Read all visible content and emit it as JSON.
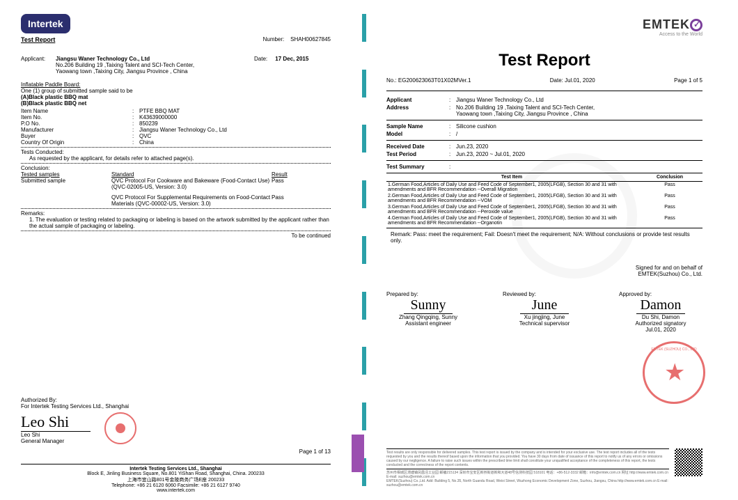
{
  "left": {
    "logo_text": "Intertek",
    "report_label": "Test Report",
    "number_label": "Number:",
    "number_value": "SHAH00627845",
    "applicant_label": "Applicant:",
    "applicant_name": "Jiangsu Waner Technology Co., Ltd",
    "applicant_addr1": "No.206 Building 19 ,Taixing Talent and SCI-Tech Center,",
    "applicant_addr2": "Yaowang town ,Taixing City, Jiangsu Province , China",
    "date_label": "Date:",
    "date_value": "17 Dec, 2015",
    "sample_header": "Inflatable Paddle Board:",
    "sample_line1": "One (1) group of submitted sample said to be",
    "sample_a": "(A)Black plastic BBQ mat",
    "sample_b": "(B)Black plastic BBQ net",
    "fields": [
      {
        "k": "Item Name",
        "v": "PTFE BBQ MAT"
      },
      {
        "k": "Item No.",
        "v": "K43639000000"
      },
      {
        "k": "P.O No.",
        "v": "850239"
      },
      {
        "k": "Manufacturer",
        "v": "Jiangsu Waner Technology Co., Ltd"
      },
      {
        "k": "Buyer",
        "v": "QVC"
      },
      {
        "k": "Country Of Origin",
        "v": "China"
      }
    ],
    "tests_conducted_label": "Tests Conducted:",
    "tests_conducted_text": "As requested by the applicant, for details refer to attached page(s).",
    "conclusion_label": "Conclusion:",
    "table_h1": "Tested samples",
    "table_h2": "Standard",
    "table_h3": "Result",
    "row1_a": "Submitted sample",
    "row1_b": "QVC Protocol For Cookware and Bakeware (Food-Contact Use) (QVC-02005-US, Version: 3.0)",
    "row1_c": "Pass",
    "row2_b": "QVC Protocol For Supplemental Requirements on Food-Contact Materials (QVC-00002-US, Version: 3.0)",
    "row2_c": "Pass",
    "remarks_label": "Remarks:",
    "remarks_text": "1.   The evaluation or testing related to packaging or labeling is based on the artwork submitted by the applicant rather than the actual sample of packaging or labeling.",
    "tbc": "To be continued",
    "auth_label": "Authorized By:",
    "auth_for": "For Intertek Testing Services Ltd., Shanghai",
    "signer_name": "Leo Shi",
    "signer_title": "General Manager",
    "page": "Page 1 of 13",
    "footer_company": "Intertek Testing Services Ltd., Shanghai",
    "footer_addr_en": "Block E, Jinling Business Square, No.801 YiShan Road, Shanghai, China. 200233",
    "footer_addr_cn": "上海市宜山路801号金陵商务广场E座 200233",
    "footer_tel": "Telephone: +86 21 6120 6060   Facsimile: +86 21 6127 9740",
    "footer_web": "www.intertek.com"
  },
  "right": {
    "logo_text": "EMTEK",
    "logo_sub": "Access to the World",
    "title": "Test Report",
    "no_label": "No.:",
    "no_value": "EG200623063T01X02MVer.1",
    "date_label": "Date:",
    "date_value": "Jul.01, 2020",
    "page": "Page 1 of 5",
    "applicant_k": "Applicant",
    "applicant_v": "Jiangsu Waner Technology Co., Ltd",
    "address_k": "Address",
    "address_v1": "No.206 Building 19 ,Taixing Talent and SCI-Tech Center,",
    "address_v2": "Yaowang town ,Taixing City, Jiangsu Province , China",
    "sample_k": "Sample Name",
    "sample_v": "Silicone cushion",
    "model_k": "Model",
    "model_v": "/",
    "recv_k": "Received Date",
    "recv_v": "Jun.23, 2020",
    "period_k": "Test Period",
    "period_v": "Jun.23, 2020 ~ Jul.01, 2020",
    "summary_k": "Test Summary",
    "th_item": "Test Item",
    "th_concl": "Conclusion",
    "items": [
      {
        "t": "1.German Food,Articles of Daily Use and Feed Code of September1, 2005(LFGB), Section 30 and 31 with amendments and BFR Recommendation --Overall Migration",
        "c": "Pass"
      },
      {
        "t": "2.German Food,Articles of Daily Use and Feed Code of September1, 2005(LFGB), Section 30 and 31 with amendments and BFR Recommendation --VOM",
        "c": "Pass"
      },
      {
        "t": "3.German Food,Articles of Daily Use and Feed Code of September1, 2005(LFGB), Section 30 and 31 with amendments and BFR Recommendation --Peroxide value",
        "c": "Pass"
      },
      {
        "t": "4.German Food,Articles of Daily Use and Feed Code of September1, 2005(LFGB), Section 30 and 31 with amendments and BFR Recommendation --Organotin",
        "c": "Pass"
      }
    ],
    "remark": "Remark: Pass: meet the requirement; Fail: Doesn't meet the requirement; N/A: Without conclusions or provide test results only.",
    "signed_for": "Signed for and on behalf of",
    "signed_co": "EMTEK(Suzhou) Co., Ltd.",
    "prepared_label": "Prepared by:",
    "reviewed_label": "Reviewed by:",
    "approved_label": "Approved by:",
    "sig1": "Sunny",
    "sig1_name": "Zhang Qingqing, Sunny",
    "sig1_title": "Assistant engineer",
    "sig2": "June",
    "sig2_name": "Xu jingjing, June",
    "sig2_title": "Technical supervisor",
    "sig3": "Damon",
    "sig3_name": "Du Shi, Damon",
    "sig3_title": "Authorized signatory",
    "sig3_date": "Jul.01, 2020",
    "disclaimer": "Test results are only responsible for delivered samples. This test report is issued by the company and is intended for your exclusive use. The test report includes all of the tests requested by you and the results thereof based upon the information that you provided. You have 30 days from date of issuance of this report to notify us of any errors or omissions caused by our negligence. A failure to raise such issues within the prescribed time limit shall constitute your unqualified acceptance of the completeness of this report, the tests conducted and the correctness of the report contents.",
    "footer_cn": "苏州市相城区渭塘镇凤凰泾工业园 邮编215134 深圳市宝安区新桥街道新和大道48号信测科技园 518101 电话：+86‑512‑3332 邮箱：info@emtek.com.cn  网址  http://www.emtek.com.cn  E‑mail: suzhou@emtek.com.cn",
    "footer_en": "EMTEK(Suzhou) Co.,Ltd.  Add: Building 5, No.35, North Guandu Road, Weixi Street, Wuzhong Economic Development Zone, Suzhou, Jiangsu, China  http://www.emtek.com.cn  E-mail: suzhou@emtek.com.cn"
  }
}
